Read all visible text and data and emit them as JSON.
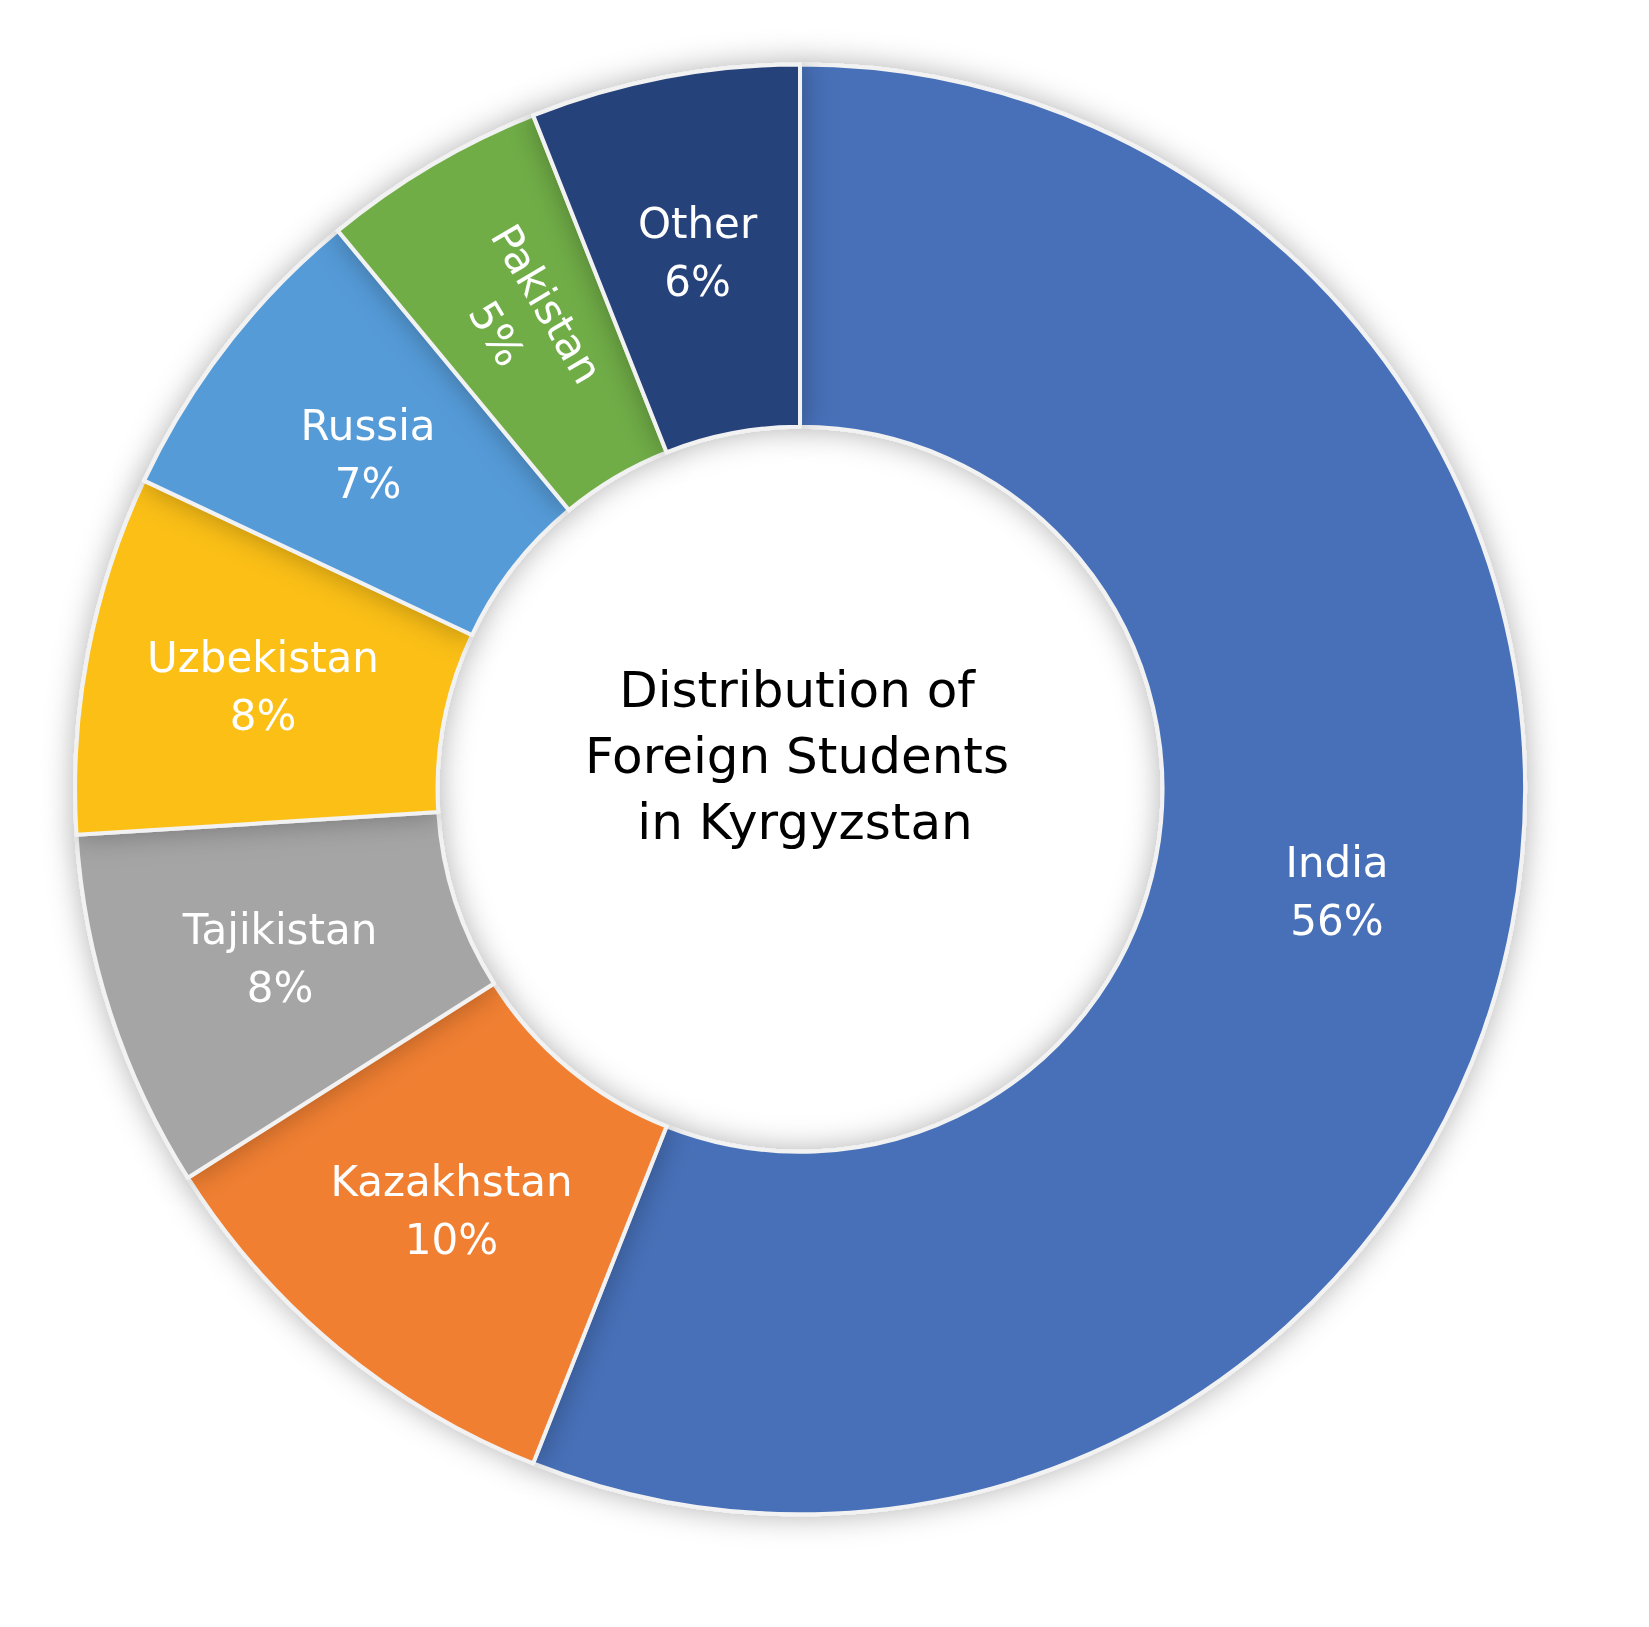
{
  "chart_data": {
    "type": "donut",
    "title": "Distribution of Foreign Students in Kyrgyzstan",
    "categories": [
      "India",
      "Kazakhstan",
      "Tajikistan",
      "Uzbekistan",
      "Russia",
      "Pakistan",
      "Other"
    ],
    "values": [
      56,
      10,
      8,
      8,
      7,
      5,
      6
    ],
    "value_labels": [
      "56%",
      "10%",
      "8%",
      "8%",
      "7%",
      "5%",
      "6%"
    ],
    "colors": [
      "#4670b8",
      "#f07f30",
      "#a5a5a5",
      "#fbbf12",
      "#559bd8",
      "#70ad47",
      "#27427a"
    ],
    "legend": false
  }
}
